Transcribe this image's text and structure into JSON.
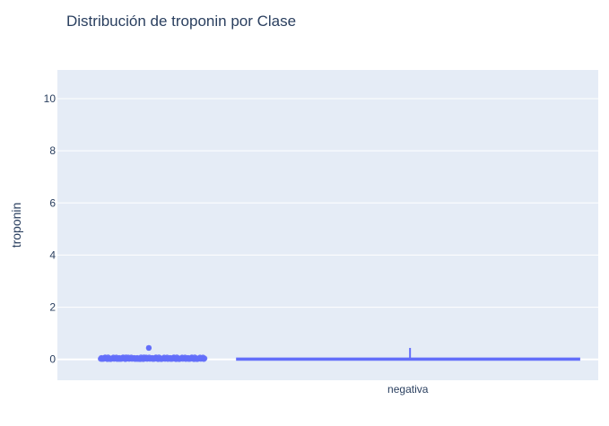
{
  "chart_data": {
    "type": "box",
    "title": "Distribución de troponin por Clase",
    "xlabel": "",
    "ylabel": "troponin",
    "categories": [
      "negativa"
    ],
    "ylim": [
      -0.8,
      11.1
    ],
    "yticks": [
      0,
      2,
      4,
      6,
      8,
      10
    ],
    "grid": true,
    "legend": "none",
    "colors": {
      "series": "#636efa",
      "plot_bg": "#e5ecf6",
      "grid": "#ffffff",
      "text": "#2a3f5f"
    },
    "series": [
      {
        "category": "negativa",
        "box": {
          "min": 0.0,
          "q1": 0.0,
          "median": 0.01,
          "q3": 0.02,
          "upper_fence": 0.44
        },
        "points": [
          0.44,
          0.06,
          0.05,
          0.04,
          0.03,
          0.03,
          0.02,
          0.02,
          0.01,
          0.01,
          0.0,
          0.0
        ]
      }
    ]
  }
}
